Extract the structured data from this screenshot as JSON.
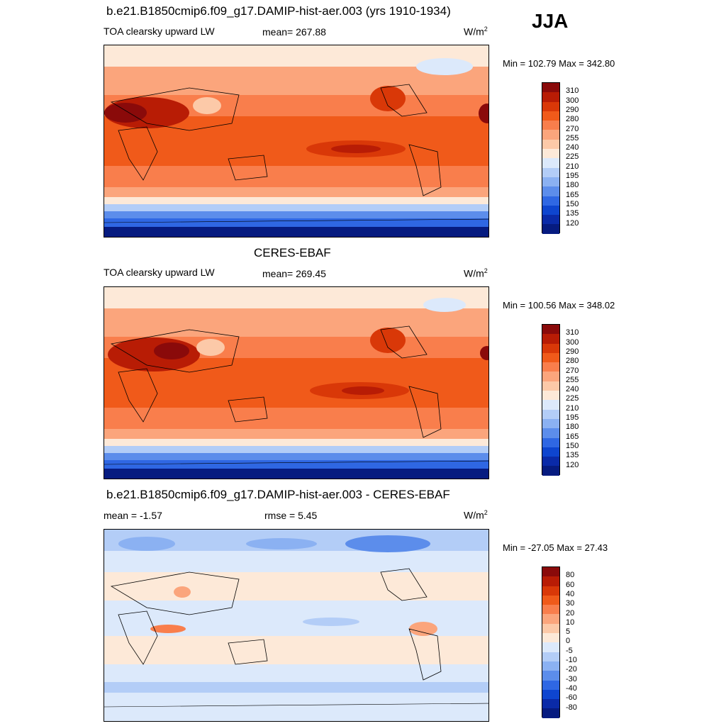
{
  "season": "JJA",
  "panels": [
    {
      "title": "b.e21.B1850cmip6.f09_g17.DAMIP-hist-aer.003 (yrs 1910-1934)",
      "left_label": "TOA clearsky upward LW",
      "center_label": "mean= 267.88",
      "units": "W/m",
      "units_sup": "2",
      "minmax": "Min = 102.79 Max = 342.80"
    },
    {
      "title": "CERES-EBAF",
      "left_label": "TOA clearsky upward LW",
      "center_label": "mean= 269.45",
      "units": "W/m",
      "units_sup": "2",
      "minmax": "Min = 100.56 Max = 348.02"
    },
    {
      "title": "b.e21.B1850cmip6.f09_g17.DAMIP-hist-aer.003 - CERES-EBAF",
      "left_label": "mean =  -1.57",
      "center_label": "rmse =   5.45",
      "units": "W/m",
      "units_sup": "2",
      "minmax": "Min = -27.05 Max =  27.43"
    }
  ],
  "colorbars": {
    "field": {
      "labels": [
        "310",
        "300",
        "290",
        "280",
        "270",
        "255",
        "240",
        "225",
        "210",
        "195",
        "180",
        "165",
        "150",
        "135",
        "120"
      ],
      "colors": [
        "#8a0a0a",
        "#b81c05",
        "#d93808",
        "#f05a1a",
        "#f97e4c",
        "#fba57c",
        "#fcc9a8",
        "#fde9d8",
        "#dce9fb",
        "#b3cdf7",
        "#8bb1f2",
        "#5c8deb",
        "#2f67e3",
        "#0e45cf",
        "#0a2aa8",
        "#061b80"
      ]
    },
    "diff": {
      "labels": [
        "80",
        "60",
        "40",
        "30",
        "20",
        "10",
        "5",
        "0",
        "-5",
        "-10",
        "-20",
        "-30",
        "-40",
        "-60",
        "-80"
      ],
      "colors": [
        "#8a0a0a",
        "#b81c05",
        "#d93808",
        "#f05a1a",
        "#f97e4c",
        "#fba57c",
        "#fcc9a8",
        "#fde9d8",
        "#dce9fb",
        "#b3cdf7",
        "#8bb1f2",
        "#5c8deb",
        "#2f67e3",
        "#0e45cf",
        "#0a2aa8",
        "#061b80"
      ]
    }
  },
  "chart_data": [
    {
      "type": "heatmap",
      "title": "b.e21.B1850cmip6.f09_g17.DAMIP-hist-aer.003 (yrs 1910-1934)",
      "variable": "TOA clearsky upward LW",
      "season": "JJA",
      "units": "W/m2",
      "mean": 267.88,
      "min": 102.79,
      "max": 342.8,
      "levels": [
        120,
        135,
        150,
        165,
        180,
        195,
        210,
        225,
        240,
        255,
        270,
        280,
        290,
        300,
        310
      ]
    },
    {
      "type": "heatmap",
      "title": "CERES-EBAF",
      "variable": "TOA clearsky upward LW",
      "season": "JJA",
      "units": "W/m2",
      "mean": 269.45,
      "min": 100.56,
      "max": 348.02,
      "levels": [
        120,
        135,
        150,
        165,
        180,
        195,
        210,
        225,
        240,
        255,
        270,
        280,
        290,
        300,
        310
      ]
    },
    {
      "type": "heatmap",
      "title": "b.e21.B1850cmip6.f09_g17.DAMIP-hist-aer.003 - CERES-EBAF",
      "season": "JJA",
      "units": "W/m2",
      "mean": -1.57,
      "rmse": 5.45,
      "min": -27.05,
      "max": 27.43,
      "levels": [
        -80,
        -60,
        -40,
        -30,
        -20,
        -10,
        -5,
        0,
        5,
        10,
        20,
        30,
        40,
        60,
        80
      ]
    }
  ]
}
